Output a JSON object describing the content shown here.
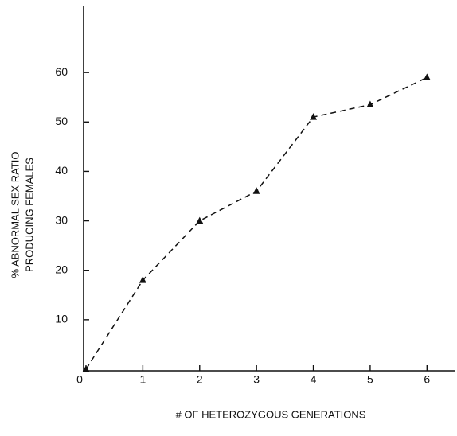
{
  "chart_data": {
    "type": "line",
    "x_label": "# OF HETEROZYGOUS GENERATIONS",
    "y_label": [
      "% ABNORMAL SEX RATIO",
      "PRODUCING FEMALES"
    ],
    "x": [
      0,
      1,
      2,
      3,
      4,
      5,
      6
    ],
    "series": [
      {
        "color": "#111111",
        "values": [
          0,
          18,
          30,
          36,
          51,
          53.5,
          59
        ]
      }
    ],
    "xlim": [
      0,
      6.5
    ],
    "ylim": [
      0,
      70
    ],
    "xticks": [
      0,
      1,
      2,
      3,
      4,
      5,
      6
    ],
    "yticks": [
      10,
      20,
      30,
      40,
      50,
      60
    ],
    "marker": "triangle",
    "line_style": "dashed",
    "grid": false
  }
}
